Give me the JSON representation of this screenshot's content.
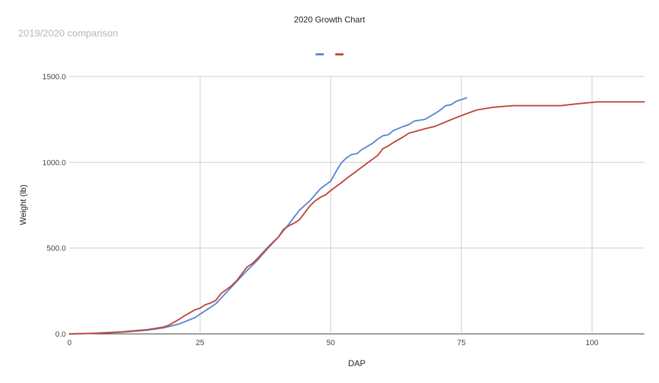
{
  "chart_data": {
    "type": "line",
    "title": "2020 Growth Chart",
    "subtitle": "2019/2020 comparison",
    "xlabel": "DAP",
    "ylabel": "Weight (lb)",
    "xlim": [
      0,
      110
    ],
    "ylim": [
      0,
      1500
    ],
    "x_ticks": [
      0,
      25,
      50,
      75,
      100
    ],
    "x_tick_labels": [
      "0",
      "25",
      "50",
      "75",
      "100"
    ],
    "y_ticks": [
      0,
      500,
      1000,
      1500
    ],
    "y_tick_labels": [
      "0.0",
      "500.0",
      "1000.0",
      "1500.0"
    ],
    "grid": true,
    "legend_position": "top",
    "series": [
      {
        "color": "#5b87d6",
        "points": [
          [
            0,
            0
          ],
          [
            5,
            3
          ],
          [
            10,
            10
          ],
          [
            15,
            22
          ],
          [
            18,
            35
          ],
          [
            21,
            58
          ],
          [
            24,
            95
          ],
          [
            26,
            135
          ],
          [
            28,
            175
          ],
          [
            30,
            240
          ],
          [
            32,
            305
          ],
          [
            34,
            370
          ],
          [
            36,
            430
          ],
          [
            38,
            500
          ],
          [
            40,
            565
          ],
          [
            42,
            640
          ],
          [
            43,
            680
          ],
          [
            44,
            720
          ],
          [
            46,
            775
          ],
          [
            48,
            845
          ],
          [
            50,
            890
          ],
          [
            51,
            945
          ],
          [
            52,
            995
          ],
          [
            53,
            1025
          ],
          [
            54,
            1045
          ],
          [
            55,
            1050
          ],
          [
            56,
            1075
          ],
          [
            58,
            1110
          ],
          [
            59,
            1135
          ],
          [
            60,
            1155
          ],
          [
            61,
            1160
          ],
          [
            62,
            1185
          ],
          [
            64,
            1210
          ],
          [
            65,
            1220
          ],
          [
            66,
            1240
          ],
          [
            68,
            1250
          ],
          [
            70,
            1285
          ],
          [
            71,
            1305
          ],
          [
            72,
            1330
          ],
          [
            73,
            1335
          ],
          [
            74,
            1355
          ],
          [
            75,
            1365
          ],
          [
            76,
            1375
          ]
        ]
      },
      {
        "color": "#c0463a",
        "points": [
          [
            0,
            0
          ],
          [
            5,
            4
          ],
          [
            10,
            12
          ],
          [
            15,
            25
          ],
          [
            18,
            40
          ],
          [
            19,
            50
          ],
          [
            21,
            85
          ],
          [
            22,
            105
          ],
          [
            24,
            140
          ],
          [
            25,
            150
          ],
          [
            26,
            170
          ],
          [
            27,
            180
          ],
          [
            28,
            195
          ],
          [
            29,
            235
          ],
          [
            31,
            280
          ],
          [
            32,
            310
          ],
          [
            34,
            390
          ],
          [
            35,
            410
          ],
          [
            36,
            440
          ],
          [
            38,
            505
          ],
          [
            39,
            535
          ],
          [
            40,
            565
          ],
          [
            41,
            610
          ],
          [
            42,
            630
          ],
          [
            43,
            645
          ],
          [
            44,
            665
          ],
          [
            45,
            705
          ],
          [
            46,
            745
          ],
          [
            47,
            775
          ],
          [
            48,
            795
          ],
          [
            49,
            810
          ],
          [
            50,
            835
          ],
          [
            52,
            880
          ],
          [
            53,
            905
          ],
          [
            55,
            950
          ],
          [
            57,
            995
          ],
          [
            59,
            1040
          ],
          [
            60,
            1080
          ],
          [
            61,
            1095
          ],
          [
            62,
            1115
          ],
          [
            64,
            1150
          ],
          [
            65,
            1170
          ],
          [
            66,
            1178
          ],
          [
            68,
            1195
          ],
          [
            70,
            1210
          ],
          [
            72,
            1235
          ],
          [
            74,
            1260
          ],
          [
            76,
            1283
          ],
          [
            78,
            1305
          ],
          [
            81,
            1320
          ],
          [
            83,
            1325
          ],
          [
            85,
            1330
          ],
          [
            90,
            1330
          ],
          [
            94,
            1330
          ],
          [
            97,
            1340
          ],
          [
            101,
            1352
          ],
          [
            105,
            1352
          ],
          [
            110,
            1352
          ]
        ]
      }
    ]
  }
}
